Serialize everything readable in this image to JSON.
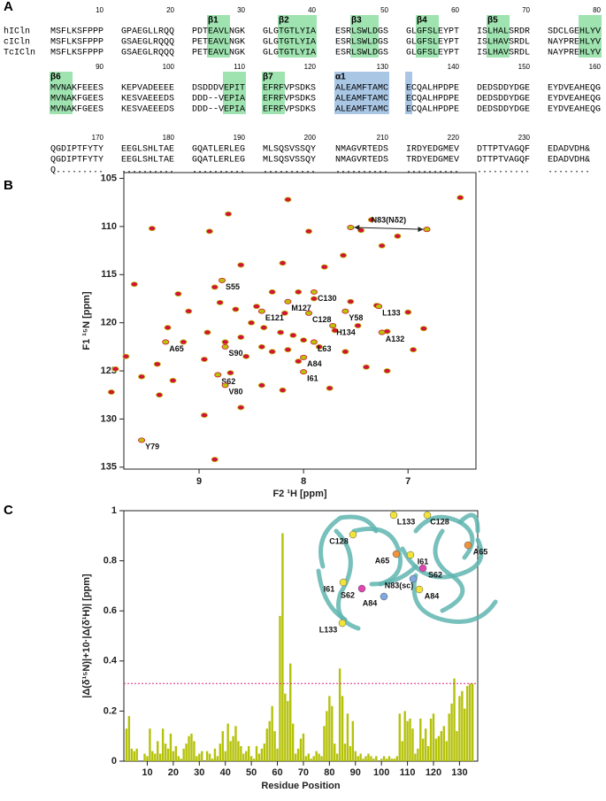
{
  "alignment": {
    "panel_label": "A",
    "names": [
      "hICln",
      "cICln",
      "TcICln"
    ],
    "blocks": [
      {
        "numbers": [
          10,
          20,
          30,
          40,
          50,
          60,
          70,
          80
        ],
        "labels": [
          "β1",
          "β2",
          "β3",
          "β4",
          "β5"
        ],
        "rows": [
          [
            "MSFLKSFPPP",
            "GPAEGLLRQQ",
            "PDTEAVLNGK",
            "GLGTGTLYIA",
            "ESRLSWLDGS",
            "GLGFSLEYPT",
            "ISLHALSRDR",
            "SDCLGEHLYV"
          ],
          [
            "MSFLKSFPPP",
            "GSAEGLRQQQ",
            "PETEAVLNGK",
            "GLGTGTLYIA",
            "ESRLSWLDGS",
            "GLGFSLEYPT",
            "ISLHAVSRDL",
            "NAYPREHLYV"
          ],
          [
            "MSFLKSFPPP",
            "GSAEGLRQQQ",
            "PETEAVLNGK",
            "GLGTGTLYIA",
            "ESRLSWLDGS",
            "GLGFSLEYPT",
            "ISLHAVSRDL",
            "NAYPREHLYV"
          ]
        ]
      },
      {
        "numbers": [
          90,
          100,
          110,
          120,
          130,
          140,
          150,
          160
        ],
        "labels": [
          "β6",
          "β7",
          "α1"
        ],
        "rows": [
          [
            "MVNAKFEEES",
            "KEPVADEEEE",
            "DSDDDVEPIT",
            "EFRFVPSDKS",
            "ALEAMFTAMC",
            "ECQALHPDPE",
            "DEDSDDYDGE",
            "EYDVEAHEQG"
          ],
          [
            "MVNAKFGEES",
            "KESVAEEEDS",
            "DDD--VEPIA",
            "EFRFVPSDKS",
            "ALEAMFTAMC",
            "ECQALHPDPE",
            "DEDSDDYDGE",
            "EYDVEAHEQG"
          ],
          [
            "MVNAKFGEES",
            "KESVAEEEDS",
            "DDD--VEPIA",
            "EFRFVPSDKS",
            "ALEAMFTAMC",
            "ECQALHPDPE",
            "DEDSDDYDGE",
            "EYDVEAHEQG"
          ]
        ]
      },
      {
        "numbers": [
          170,
          180,
          190,
          200,
          210,
          220,
          230
        ],
        "labels": [],
        "rows": [
          [
            "QGDIPTFYTY",
            "EEGLSHLTAE",
            "GQATLERLEG",
            "MLSQSVSSQY",
            "NMAGVRTEDS",
            "IRDYEDGMEV",
            "DTTPTVAGQF",
            "EDADVDH&"
          ],
          [
            "QGDIPTFYTY",
            "EEGLSHLTAE",
            "GQATLERLEG",
            "MLSQSVSSQY",
            "NMAGVRTEDS",
            "TRDYEDGMEV",
            "DTTPTVAGQF",
            "EDADVDH&"
          ],
          [
            "Q.........",
            "..........",
            "..........",
            "..........",
            "..........",
            "..........",
            "..........",
            "........"
          ]
        ]
      }
    ]
  },
  "chart_data": [
    {
      "type": "scatter",
      "panel_label": "B",
      "x_label": "F2 ¹H [ppm]",
      "y_label": "F1 ¹⁵N [ppm]",
      "xlim": [
        6.35,
        9.72
      ],
      "x_inverted": true,
      "xticks": [
        9,
        8,
        7
      ],
      "ylim": [
        104.4,
        135.2
      ],
      "y_inverted": true,
      "yticks": [
        105,
        110,
        115,
        120,
        125,
        130,
        135
      ],
      "color": "#d4103c",
      "edge_color": "#b8c400",
      "x": [
        6.5,
        7.35,
        8.72,
        8.15,
        7.95,
        7.45,
        6.82,
        7.1,
        7.25,
        8.9,
        9.45,
        7.62,
        8.2,
        7.8,
        8.6,
        8.85,
        9.62,
        9.2,
        8.05,
        8.3,
        7.9,
        7.55,
        8.45,
        8.65,
        7.3,
        7.0,
        8.18,
        8.5,
        8.38,
        8.22,
        8.1,
        8.0,
        8.6,
        8.75,
        7.7,
        7.48,
        6.85,
        7.2,
        8.92,
        9.3,
        9.15,
        8.4,
        8.3,
        8.15,
        7.85,
        7.6,
        8.55,
        8.95,
        9.7,
        9.4,
        8.05,
        7.4,
        8.7,
        9.8,
        9.55,
        9.25,
        8.4,
        9.38,
        9.84,
        8.6,
        8.95,
        8.85,
        7.2,
        6.95,
        7.75,
        8.2,
        9.1,
        8.8
      ],
      "y": [
        107.0,
        109.3,
        108.7,
        107.2,
        110.5,
        110.4,
        110.3,
        111.0,
        112.0,
        110.5,
        110.2,
        113.0,
        113.8,
        114.2,
        114.0,
        116.3,
        116.0,
        117.0,
        116.8,
        116.8,
        117.5,
        117.8,
        118.3,
        118.6,
        118.2,
        118.9,
        119.0,
        120.0,
        120.5,
        121.0,
        121.3,
        121.8,
        121.5,
        122.0,
        120.8,
        120.3,
        120.6,
        120.9,
        121.0,
        120.5,
        122.0,
        122.5,
        123.0,
        122.8,
        122.5,
        123.0,
        123.5,
        123.8,
        123.5,
        124.3,
        124.0,
        124.6,
        125.2,
        124.8,
        125.6,
        126.0,
        126.5,
        127.5,
        127.2,
        128.8,
        129.6,
        134.2,
        125.0,
        122.8,
        126.8,
        127.0,
        118.8,
        117.9
      ],
      "annotations": [
        {
          "text": "S55",
          "x": 8.78,
          "y": 115.6
        },
        {
          "text": "C130",
          "x": 7.9,
          "y": 116.8
        },
        {
          "text": "M127",
          "x": 8.15,
          "y": 117.8
        },
        {
          "text": "E121",
          "x": 8.4,
          "y": 118.8
        },
        {
          "text": "C128",
          "x": 7.95,
          "y": 119.0
        },
        {
          "text": "L133",
          "x": 7.28,
          "y": 118.3
        },
        {
          "text": "Y58",
          "x": 7.6,
          "y": 118.8
        },
        {
          "text": "H134",
          "x": 7.72,
          "y": 120.3
        },
        {
          "text": "A132",
          "x": 7.25,
          "y": 121.0
        },
        {
          "text": "L63",
          "x": 7.9,
          "y": 122.0
        },
        {
          "text": "S90",
          "x": 8.75,
          "y": 122.5
        },
        {
          "text": "A84",
          "x": 8.0,
          "y": 123.6
        },
        {
          "text": "A65",
          "x": 9.32,
          "y": 122.0
        },
        {
          "text": "I61",
          "x": 8.0,
          "y": 125.1
        },
        {
          "text": "S62",
          "x": 8.82,
          "y": 125.4
        },
        {
          "text": "V80",
          "x": 8.75,
          "y": 126.5
        },
        {
          "text": "Y79",
          "x": 9.55,
          "y": 132.2
        }
      ],
      "arrow_annotation": {
        "text": "N83(Nδ2)",
        "x": [
          7.55,
          6.82
        ],
        "y": [
          110.1,
          110.3
        ]
      }
    },
    {
      "type": "bar",
      "panel_label": "C",
      "x_label": "Residue Position",
      "y_label": "|Δ(δ¹⁵N)|+10·|Δ(δ¹H)| [ppm]",
      "xlim": [
        1,
        137
      ],
      "xticks": [
        10,
        20,
        30,
        40,
        50,
        60,
        70,
        80,
        90,
        100,
        110,
        120,
        130
      ],
      "ylim": [
        0,
        1
      ],
      "yticks": [
        0,
        0.2,
        0.4,
        0.6,
        0.8,
        1
      ],
      "color": "#b5c20a",
      "threshold": 0.31,
      "threshold_color": "#e0287f",
      "x": [
        2,
        3,
        4,
        5,
        6,
        7,
        8,
        9,
        10,
        11,
        12,
        13,
        14,
        15,
        16,
        17,
        18,
        19,
        20,
        21,
        22,
        23,
        24,
        25,
        26,
        27,
        28,
        29,
        30,
        31,
        32,
        33,
        34,
        35,
        36,
        37,
        38,
        39,
        40,
        41,
        42,
        43,
        44,
        45,
        46,
        47,
        48,
        49,
        50,
        51,
        52,
        53,
        54,
        55,
        56,
        57,
        58,
        59,
        60,
        61,
        62,
        63,
        64,
        65,
        66,
        67,
        68,
        69,
        70,
        71,
        72,
        73,
        74,
        75,
        76,
        77,
        78,
        79,
        80,
        81,
        82,
        83,
        84,
        85,
        86,
        87,
        88,
        89,
        90,
        91,
        92,
        93,
        94,
        95,
        96,
        97,
        98,
        99,
        100,
        101,
        102,
        103,
        104,
        105,
        106,
        107,
        108,
        109,
        110,
        111,
        112,
        113,
        114,
        115,
        116,
        117,
        118,
        119,
        120,
        121,
        122,
        123,
        124,
        125,
        126,
        127,
        128,
        129,
        130,
        131,
        132,
        133,
        134,
        135
      ],
      "values": [
        0.13,
        0.18,
        0.05,
        0.04,
        0.05,
        null,
        null,
        0.03,
        0.02,
        0.13,
        0.04,
        0.03,
        0.08,
        0.03,
        0.13,
        0.07,
        0.05,
        0.11,
        0.04,
        0.06,
        0.02,
        0.01,
        0.05,
        0.07,
        0.1,
        0.11,
        0.08,
        0.02,
        0.03,
        0.04,
        null,
        0.04,
        0.03,
        0.01,
        0.05,
        0.02,
        0.07,
        0.12,
        0.04,
        0.15,
        0.08,
        0.1,
        0.14,
        0.08,
        0.06,
        0.03,
        0.04,
        0.06,
        0.02,
        0.01,
        0.06,
        0.03,
        0.05,
        0.07,
        0.13,
        0.16,
        0.22,
        0.12,
        0.05,
        0.58,
        0.91,
        0.27,
        0.24,
        0.39,
        0.15,
        0.03,
        0.05,
        0.09,
        0.11,
        0.02,
        0.03,
        0.01,
        0.02,
        0.04,
        0.03,
        0.02,
        0.14,
        0.2,
        0.26,
        0.22,
        0.07,
        0.03,
        0.37,
        0.26,
        0.07,
        0.19,
        0.06,
        0.16,
        0.04,
        0.02,
        0.03,
        0.01,
        0.02,
        0.03,
        0.02,
        0.01,
        0.02,
        null,
        0.01,
        0.02,
        0.01,
        0.02,
        0.01,
        0.01,
        0.02,
        0.19,
        0.08,
        0.2,
        0.16,
        0.17,
        0.13,
        0.03,
        0.05,
        0.17,
        0.09,
        0.13,
        0.06,
        0.17,
        0.19,
        0.09,
        0.1,
        0.12,
        0.14,
        0.08,
        0.19,
        0.23,
        0.33,
        0.12,
        0.26,
        0.28,
        0.21,
        0.3,
        0.31,
        0.31
      ],
      "inset_labels": [
        "C128",
        "A65",
        "I61",
        "S62",
        "A84",
        "L133",
        "N83(sc)",
        "L133",
        "C128",
        "A65",
        "I61",
        "S62",
        "A84"
      ]
    }
  ]
}
